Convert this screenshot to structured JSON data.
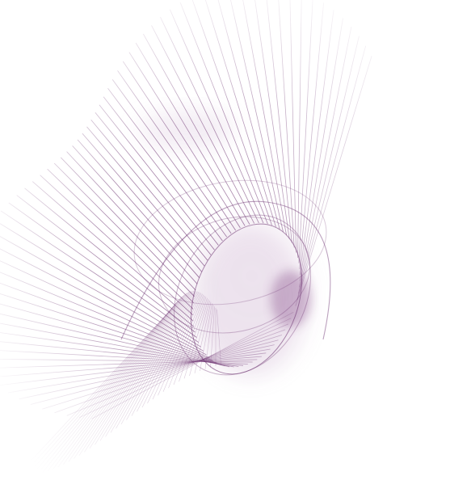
{
  "image": {
    "background_color": "#ffffff",
    "line_color": "#6a2f6e",
    "glow_color": "#b48ab8"
  }
}
